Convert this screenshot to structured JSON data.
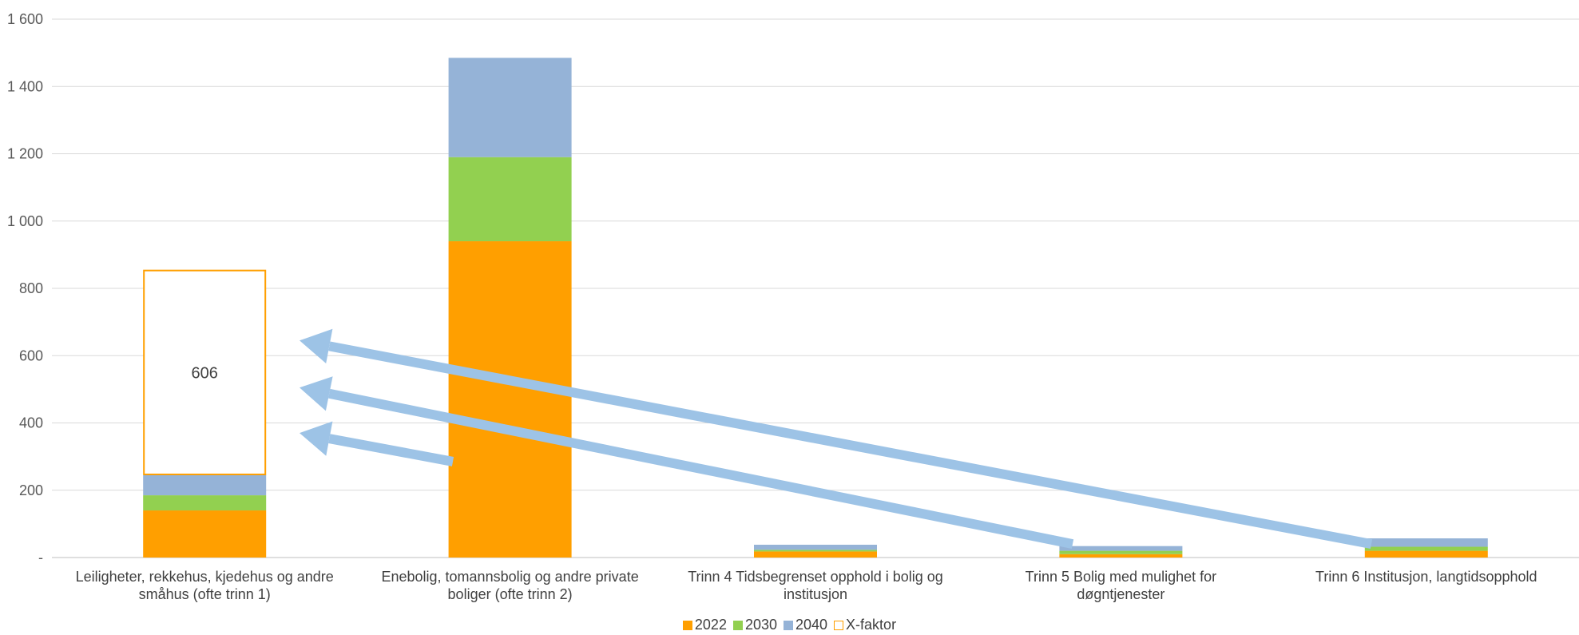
{
  "chart_data": {
    "type": "bar",
    "stacked": true,
    "title": "",
    "xlabel": "",
    "ylabel": "",
    "ylim": [
      0,
      1600
    ],
    "y_ticks": [
      "-",
      "200",
      "400",
      "600",
      "800",
      "1 000",
      "1 200",
      "1 400",
      "1 600"
    ],
    "y_tick_values": [
      0,
      200,
      400,
      600,
      800,
      1000,
      1200,
      1400,
      1600
    ],
    "grid": true,
    "legend_position": "bottom",
    "categories": [
      [
        "Leiligheter, rekkehus, kjedehus og andre",
        "småhus (ofte trinn 1)"
      ],
      [
        "Enebolig, tomannsbolig og andre private",
        "boliger (ofte trinn 2)"
      ],
      [
        "Trinn 4 Tidsbegrenset opphold i bolig og",
        "institusjon"
      ],
      [
        "Trinn 5 Bolig med mulighet for",
        "døgntjenester"
      ],
      [
        "Trinn 6 Institusjon, langtidsopphold"
      ]
    ],
    "series": [
      {
        "name": "2022",
        "color": "#FF9F00",
        "values": [
          140,
          940,
          18,
          10,
          20
        ]
      },
      {
        "name": "2030",
        "color": "#92D050",
        "values": [
          45,
          250,
          5,
          10,
          12
        ]
      },
      {
        "name": "2040",
        "color": "#95B3D7",
        "values": [
          62,
          295,
          15,
          14,
          25
        ]
      },
      {
        "name": "X-faktor",
        "color": "#FF9F00",
        "outline": true,
        "values": [
          606,
          0,
          0,
          0,
          0
        ]
      }
    ],
    "data_labels": [
      {
        "series": "X-faktor",
        "category_index": 0,
        "text": "606"
      }
    ],
    "annotations": {
      "arrows": [
        {
          "from": {
            "category_index": 1,
            "y": 285
          },
          "to": {
            "category_index": 0,
            "y": 370
          },
          "color": "#9DC3E6"
        },
        {
          "from": {
            "category_index": 3,
            "y": 40
          },
          "to": {
            "category_index": 0,
            "y": 505
          },
          "color": "#9DC3E6"
        },
        {
          "from": {
            "category_index": 4,
            "y": 40
          },
          "to": {
            "category_index": 0,
            "y": 645
          },
          "color": "#9DC3E6"
        }
      ]
    }
  }
}
